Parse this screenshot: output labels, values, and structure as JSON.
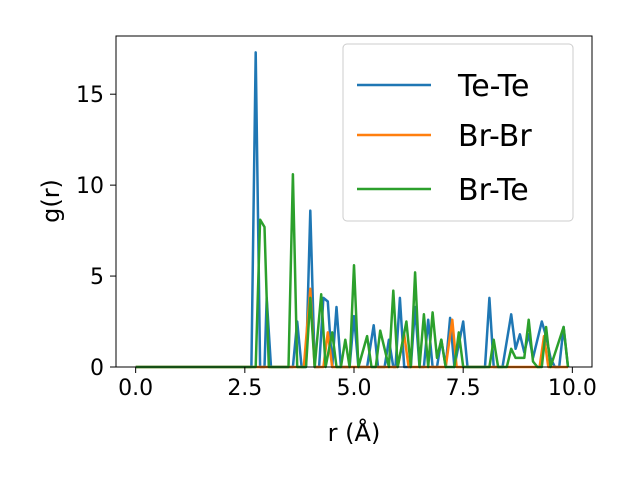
{
  "chart_data": {
    "type": "line",
    "title": "",
    "xlabel": "r (Å)",
    "ylabel": "g(r)",
    "xlim": [
      -0.45,
      10.45
    ],
    "ylim": [
      0,
      18.2
    ],
    "xticks": [
      0.0,
      2.5,
      5.0,
      7.5,
      10.0
    ],
    "xtick_labels": [
      "0.0",
      "2.5",
      "5.0",
      "7.5",
      "10.0"
    ],
    "yticks": [
      0,
      5,
      10,
      15
    ],
    "ytick_labels": [
      "0",
      "5",
      "10",
      "15"
    ],
    "grid": false,
    "legend_position": "top-right",
    "series": [
      {
        "name": "Te-Te",
        "color": "#1f77b4",
        "points": [
          [
            0,
            0
          ],
          [
            2.65,
            0
          ],
          [
            2.75,
            17.3
          ],
          [
            2.85,
            0
          ],
          [
            2.95,
            0
          ],
          [
            3.0,
            3.8
          ],
          [
            3.1,
            0
          ],
          [
            3.6,
            0
          ],
          [
            3.7,
            2.5
          ],
          [
            3.8,
            0
          ],
          [
            3.9,
            0
          ],
          [
            4.0,
            8.6
          ],
          [
            4.1,
            0
          ],
          [
            4.2,
            0
          ],
          [
            4.3,
            3.8
          ],
          [
            4.4,
            3.6
          ],
          [
            4.5,
            0
          ],
          [
            4.6,
            3.3
          ],
          [
            4.7,
            0
          ],
          [
            4.9,
            0
          ],
          [
            5.0,
            2.8
          ],
          [
            5.1,
            0
          ],
          [
            5.3,
            0
          ],
          [
            5.45,
            2.3
          ],
          [
            5.55,
            0
          ],
          [
            5.7,
            0
          ],
          [
            5.8,
            1.5
          ],
          [
            5.9,
            0
          ],
          [
            5.95,
            0
          ],
          [
            6.05,
            3.8
          ],
          [
            6.15,
            0
          ],
          [
            6.3,
            0
          ],
          [
            6.4,
            3.3
          ],
          [
            6.5,
            0
          ],
          [
            6.6,
            0
          ],
          [
            6.7,
            2.6
          ],
          [
            6.8,
            0
          ],
          [
            6.9,
            0
          ],
          [
            7.0,
            1.5
          ],
          [
            7.1,
            0
          ],
          [
            7.2,
            2.7
          ],
          [
            7.3,
            0
          ],
          [
            7.5,
            2.5
          ],
          [
            7.6,
            0
          ],
          [
            8.0,
            0
          ],
          [
            8.1,
            3.8
          ],
          [
            8.2,
            0
          ],
          [
            8.4,
            0
          ],
          [
            8.6,
            2.9
          ],
          [
            8.7,
            1.0
          ],
          [
            8.8,
            1.8
          ],
          [
            8.9,
            0.8
          ],
          [
            9.0,
            1.8
          ],
          [
            9.1,
            0.5
          ],
          [
            9.3,
            2.5
          ],
          [
            9.4,
            1.7
          ],
          [
            9.5,
            0.5
          ],
          [
            9.6,
            0
          ],
          [
            9.7,
            0
          ],
          [
            9.8,
            2.2
          ],
          [
            9.9,
            0
          ]
        ]
      },
      {
        "name": "Br-Br",
        "color": "#ff7f0e",
        "points": [
          [
            0,
            0
          ],
          [
            3.85,
            0
          ],
          [
            4.0,
            4.3
          ],
          [
            4.1,
            0
          ],
          [
            4.3,
            0
          ],
          [
            4.4,
            1.9
          ],
          [
            4.5,
            0
          ],
          [
            6.0,
            0
          ],
          [
            6.15,
            1.8
          ],
          [
            6.25,
            0
          ],
          [
            7.1,
            0
          ],
          [
            7.25,
            2.6
          ],
          [
            7.35,
            0
          ],
          [
            9.25,
            0
          ],
          [
            9.35,
            1.7
          ],
          [
            9.45,
            0
          ],
          [
            9.9,
            0
          ]
        ]
      },
      {
        "name": "Br-Te",
        "color": "#2ca02c",
        "points": [
          [
            0,
            0
          ],
          [
            2.75,
            0
          ],
          [
            2.85,
            8.1
          ],
          [
            2.95,
            7.7
          ],
          [
            3.05,
            0
          ],
          [
            3.5,
            0
          ],
          [
            3.6,
            10.6
          ],
          [
            3.7,
            0
          ],
          [
            3.9,
            0
          ],
          [
            4.0,
            3.8
          ],
          [
            4.1,
            0
          ],
          [
            4.25,
            4.0
          ],
          [
            4.35,
            0
          ],
          [
            4.5,
            1.9
          ],
          [
            4.6,
            0
          ],
          [
            4.7,
            0
          ],
          [
            4.8,
            1.5
          ],
          [
            4.9,
            0
          ],
          [
            5.0,
            5.6
          ],
          [
            5.1,
            0
          ],
          [
            5.3,
            1.7
          ],
          [
            5.4,
            0
          ],
          [
            5.5,
            0
          ],
          [
            5.6,
            2.0
          ],
          [
            5.7,
            1.0
          ],
          [
            5.8,
            0
          ],
          [
            5.9,
            4.2
          ],
          [
            6.0,
            0
          ],
          [
            6.2,
            2.5
          ],
          [
            6.3,
            0
          ],
          [
            6.4,
            5.2
          ],
          [
            6.5,
            0
          ],
          [
            6.6,
            2.9
          ],
          [
            6.7,
            0
          ],
          [
            6.8,
            3.0
          ],
          [
            6.9,
            0.5
          ],
          [
            7.0,
            1.5
          ],
          [
            7.1,
            0
          ],
          [
            7.3,
            0
          ],
          [
            7.4,
            1.9
          ],
          [
            7.5,
            0
          ],
          [
            8.1,
            0
          ],
          [
            8.2,
            1.5
          ],
          [
            8.3,
            0
          ],
          [
            8.5,
            0
          ],
          [
            8.6,
            1.0
          ],
          [
            8.7,
            0.5
          ],
          [
            8.8,
            0.5
          ],
          [
            8.9,
            0.5
          ],
          [
            9.0,
            2.6
          ],
          [
            9.1,
            0.3
          ],
          [
            9.2,
            0
          ],
          [
            9.3,
            0
          ],
          [
            9.4,
            2.2
          ],
          [
            9.5,
            0
          ],
          [
            9.8,
            2.2
          ],
          [
            9.9,
            0
          ]
        ]
      }
    ]
  }
}
